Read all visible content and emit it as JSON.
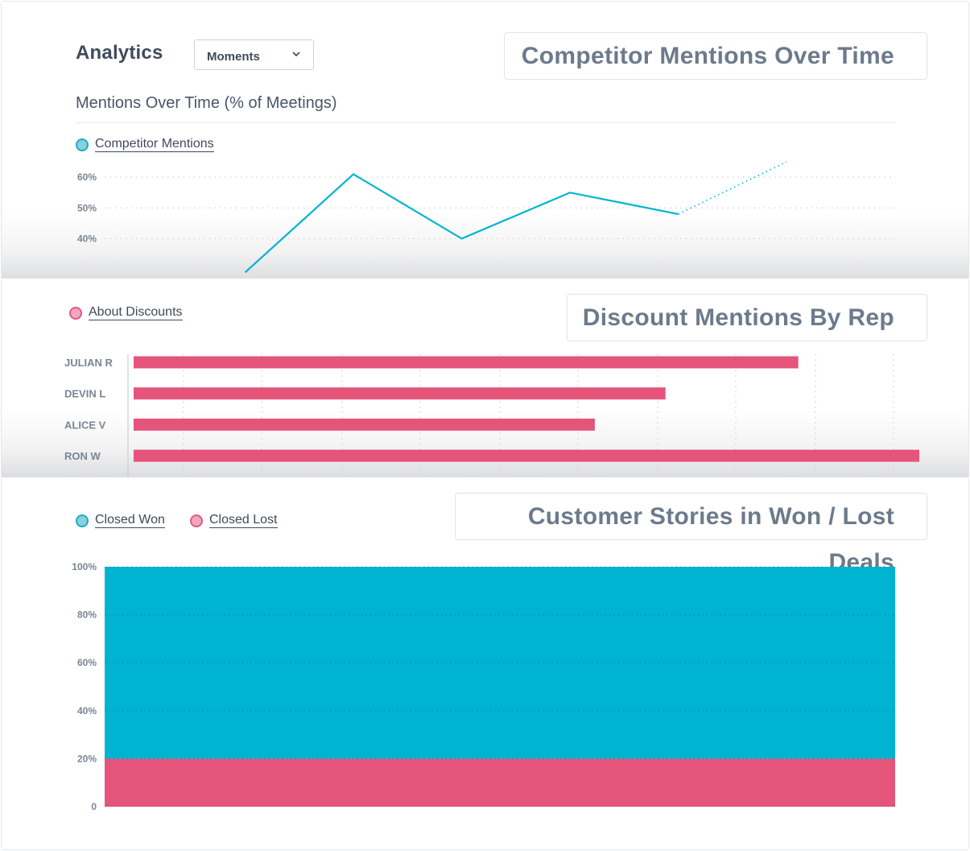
{
  "header": {
    "app_title": "Analytics",
    "select_value": "Moments"
  },
  "colors": {
    "teal": "#00b4d0",
    "pink": "#e5547a",
    "axis_text": "#7a8594",
    "title_text": "#6c7a8c"
  },
  "panel1": {
    "badge": "Competitor Mentions Over Time",
    "title": "Mentions Over Time (% of Meetings)",
    "legend": "Competitor Mentions"
  },
  "panel2": {
    "badge": "Discount Mentions By Rep",
    "legend": "About Discounts"
  },
  "panel3": {
    "badge": "Customer Stories in Won / Lost Deals",
    "legend_won": "Closed Won",
    "legend_lost": "Closed Lost"
  },
  "chart_data": [
    {
      "type": "line",
      "title": "Mentions Over Time (% of Meetings)",
      "series": [
        {
          "name": "Competitor Mentions",
          "x": [
            1,
            2,
            3,
            4,
            5,
            6
          ],
          "y": [
            29,
            61,
            40,
            55,
            48,
            65
          ],
          "projected_from_index": 4
        }
      ],
      "yticks": [
        "40%",
        "50%",
        "60%"
      ],
      "ytick_values": [
        40,
        50,
        60
      ],
      "ylim": [
        27,
        70
      ],
      "grid": true,
      "line_style_projection": "dotted"
    },
    {
      "type": "bar",
      "orientation": "horizontal",
      "categories": [
        "JULIAN R",
        "DEVIN L",
        "ALICE V",
        "RON W"
      ],
      "series": [
        {
          "name": "About Discounts",
          "values": [
            84.6,
            67.7,
            58.7,
            100
          ]
        }
      ],
      "xlim": [
        0,
        100
      ],
      "grid": true
    },
    {
      "type": "area",
      "stacked": true,
      "normalized": true,
      "yticks": [
        "0",
        "20%",
        "40%",
        "60%",
        "80%",
        "100%"
      ],
      "ytick_values": [
        0,
        20,
        40,
        60,
        80,
        100
      ],
      "ylim": [
        0,
        100
      ],
      "series": [
        {
          "name": "Closed Lost",
          "value": 20
        },
        {
          "name": "Closed Won",
          "value": 80
        }
      ],
      "grid": true
    }
  ]
}
